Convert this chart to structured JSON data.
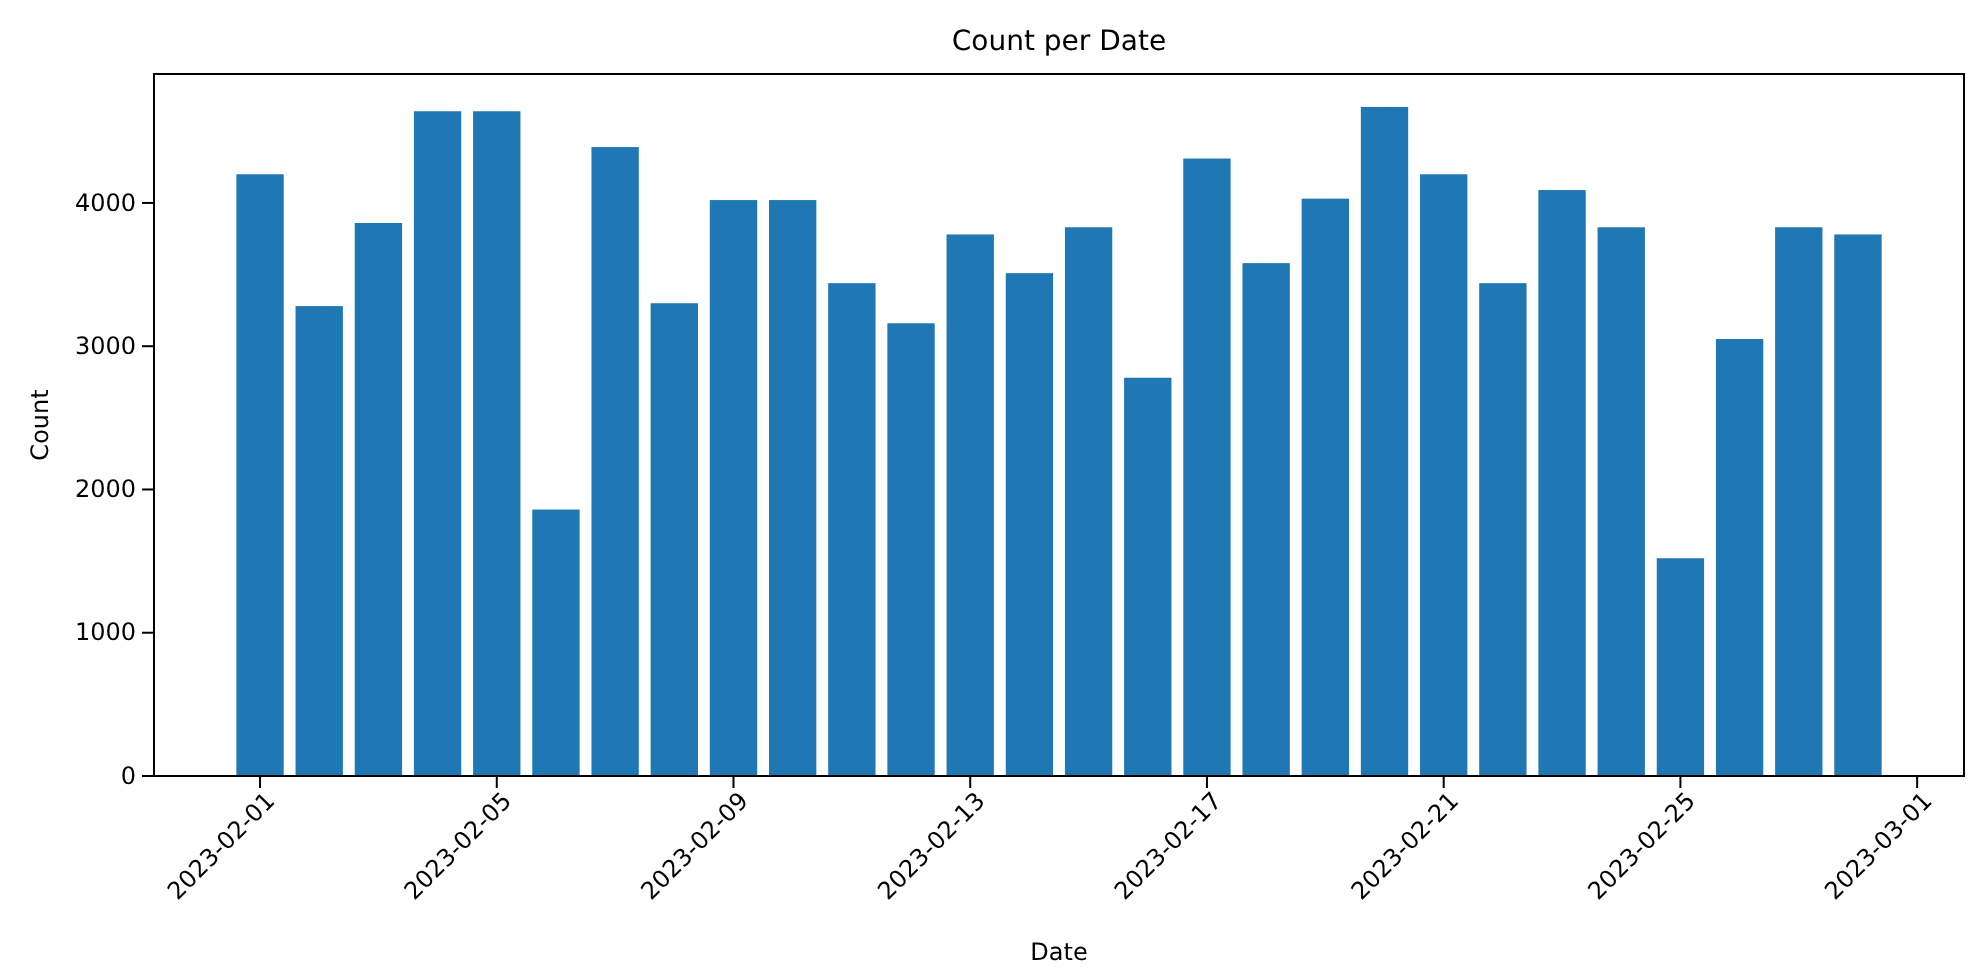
{
  "chart_data": {
    "type": "bar",
    "title": "Count per Date",
    "xlabel": "Date",
    "ylabel": "Count",
    "x": [
      "2023-02-01",
      "2023-02-02",
      "2023-02-03",
      "2023-02-04",
      "2023-02-05",
      "2023-02-06",
      "2023-02-07",
      "2023-02-08",
      "2023-02-09",
      "2023-02-10",
      "2023-02-11",
      "2023-02-12",
      "2023-02-13",
      "2023-02-14",
      "2023-02-15",
      "2023-02-16",
      "2023-02-17",
      "2023-02-18",
      "2023-02-19",
      "2023-02-20",
      "2023-02-21",
      "2023-02-22",
      "2023-02-23",
      "2023-02-24",
      "2023-02-25",
      "2023-02-26",
      "2023-02-27",
      "2023-02-28"
    ],
    "values": [
      4200,
      3280,
      3860,
      4640,
      4640,
      1860,
      4390,
      3300,
      4020,
      4020,
      3440,
      3160,
      3780,
      3510,
      3830,
      2780,
      4310,
      3580,
      4030,
      4670,
      4200,
      3440,
      4090,
      3830,
      1520,
      3050,
      3830,
      3780
    ],
    "color": "#1f77b4",
    "xlim": [
      "2023-01-30T05:00",
      "2023-03-01T19:00"
    ],
    "xticks": [
      {
        "value": "2023-02-01",
        "label": "2023-02-01"
      },
      {
        "value": "2023-02-05",
        "label": "2023-02-05"
      },
      {
        "value": "2023-02-09",
        "label": "2023-02-09"
      },
      {
        "value": "2023-02-13",
        "label": "2023-02-13"
      },
      {
        "value": "2023-02-17",
        "label": "2023-02-17"
      },
      {
        "value": "2023-02-21",
        "label": "2023-02-21"
      },
      {
        "value": "2023-02-25",
        "label": "2023-02-25"
      },
      {
        "value": "2023-03-01",
        "label": "2023-03-01"
      }
    ],
    "ylim": [
      0,
      4900
    ],
    "yticks": [
      0,
      1000,
      2000,
      3000,
      4000
    ],
    "grid": false
  }
}
